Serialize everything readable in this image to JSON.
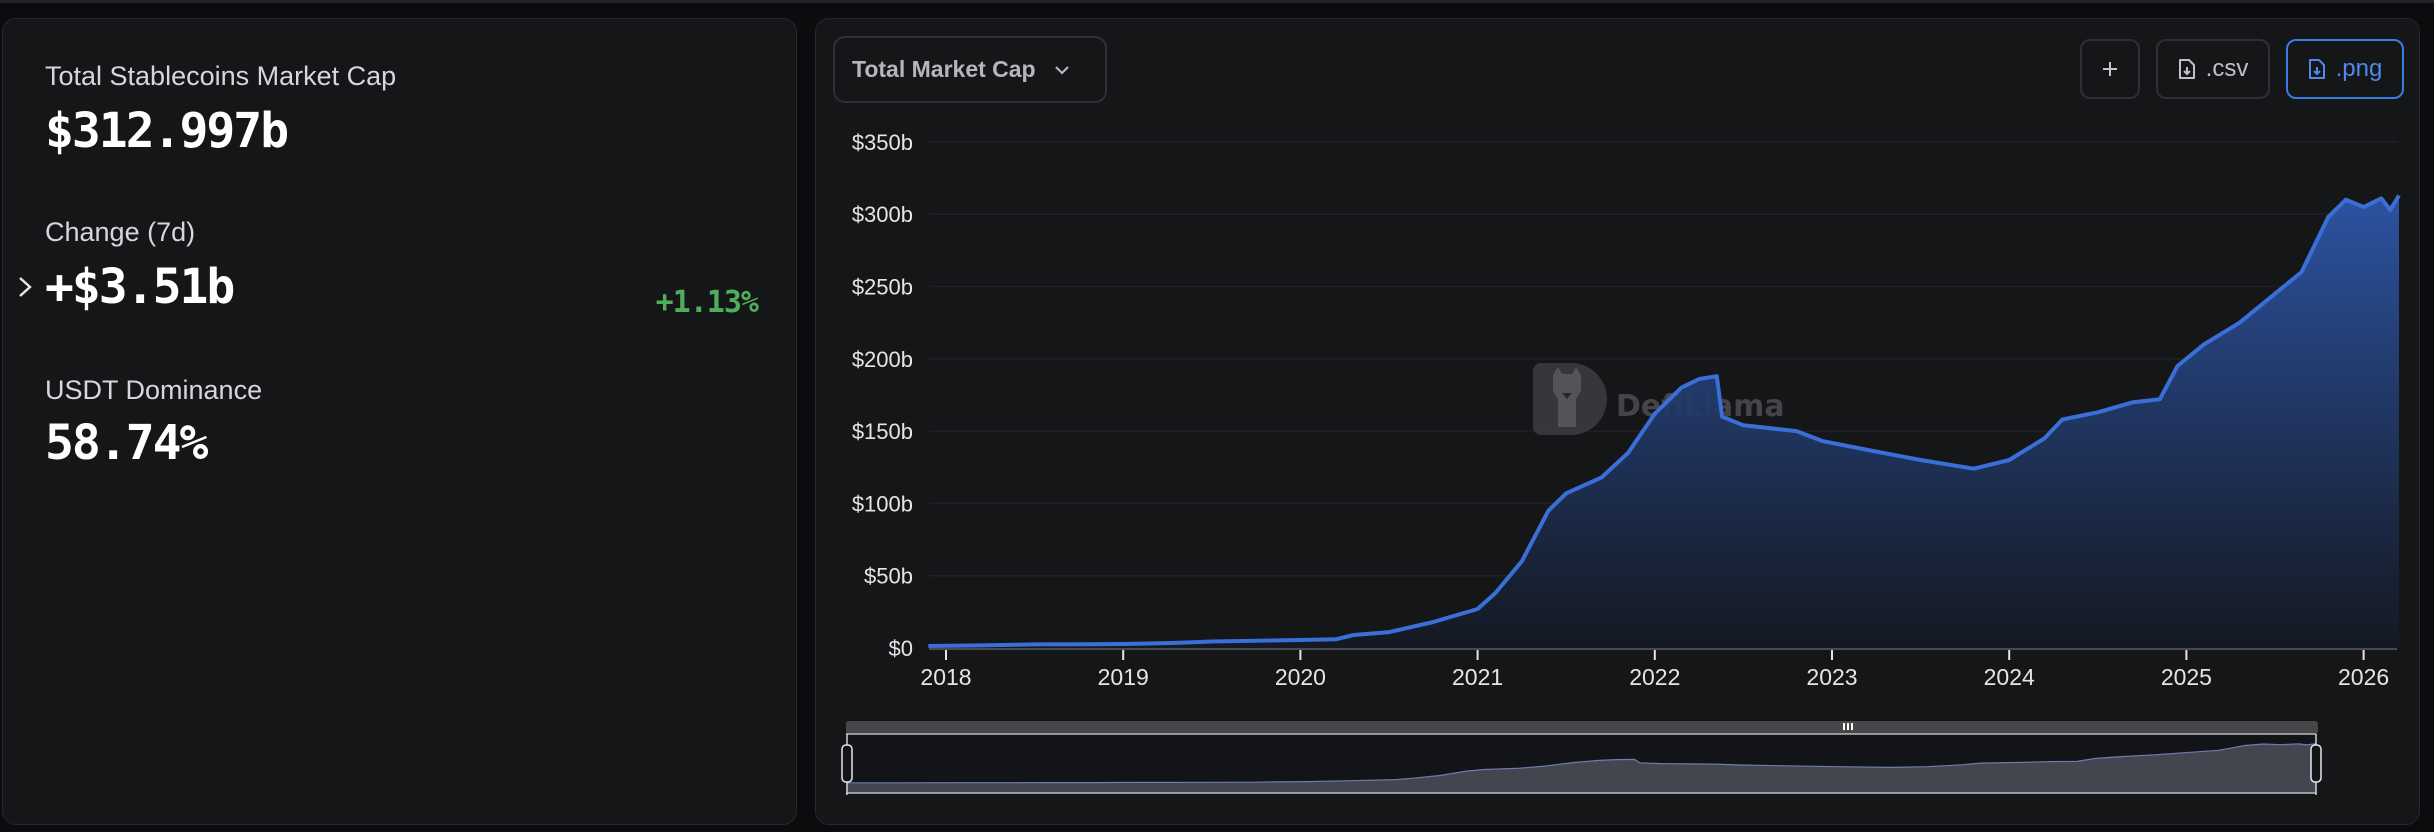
{
  "stats": {
    "market_cap": {
      "label": "Total Stablecoins Market Cap",
      "value": "$312.997b"
    },
    "change_7d": {
      "label": "Change (7d)",
      "value": "+$3.51b",
      "percent": "+1.13%",
      "percent_color": "#4fae5b"
    },
    "dominance": {
      "label": "USDT Dominance",
      "value": "58.74%"
    },
    "expand_icon": "chevron-right-icon"
  },
  "toolbar": {
    "dropdown_label": "Total Market Cap",
    "dropdown_icon": "chevron-down-icon",
    "add_label": "+",
    "csv_label": ".csv",
    "png_label": ".png",
    "download_icon": "file-download-icon",
    "active_color": "#3c7ae6"
  },
  "watermark": {
    "text": "DefiLlama",
    "icon": "llama-logo-icon"
  },
  "chart_data": {
    "type": "area",
    "title": "Total Market Cap",
    "xlabel": "",
    "ylabel": "",
    "ylim": [
      0,
      350
    ],
    "yticks": [
      "$0",
      "$50b",
      "$100b",
      "$150b",
      "$200b",
      "$250b",
      "$300b",
      "$350b"
    ],
    "ytick_values": [
      0,
      50,
      100,
      150,
      200,
      250,
      300,
      350
    ],
    "xticks": [
      "2018",
      "2019",
      "2020",
      "2021",
      "2022",
      "2023",
      "2024",
      "2025",
      "2026"
    ],
    "xtick_values": [
      2018,
      2019,
      2020,
      2021,
      2022,
      2023,
      2024,
      2025,
      2026
    ],
    "grid": true,
    "legend": "none",
    "line_color": "#3a6fd8",
    "series": [
      {
        "name": "Total Stablecoins Market Cap ($b)",
        "x": [
          2017.9,
          2018.2,
          2018.5,
          2018.8,
          2019.0,
          2019.3,
          2019.5,
          2019.75,
          2020.0,
          2020.2,
          2020.3,
          2020.5,
          2020.75,
          2021.0,
          2021.1,
          2021.25,
          2021.4,
          2021.5,
          2021.7,
          2021.85,
          2022.0,
          2022.15,
          2022.25,
          2022.35,
          2022.38,
          2022.5,
          2022.8,
          2022.95,
          2023.2,
          2023.5,
          2023.8,
          2024.0,
          2024.2,
          2024.3,
          2024.5,
          2024.7,
          2024.85,
          2024.95,
          2025.1,
          2025.3,
          2025.5,
          2025.65,
          2025.8,
          2025.9,
          2026.0,
          2026.1,
          2026.15,
          2026.2
        ],
        "values": [
          1.4,
          1.8,
          2.5,
          2.6,
          2.8,
          3.5,
          4.5,
          5.0,
          5.5,
          6.0,
          9.0,
          11.0,
          18.0,
          27.0,
          38.0,
          60.0,
          95.0,
          107.0,
          118.0,
          135.0,
          162.0,
          180.0,
          186.0,
          188.0,
          160.0,
          154.0,
          150.0,
          143.0,
          137.0,
          130.0,
          124.0,
          130.0,
          145.0,
          158.0,
          163.0,
          170.0,
          172.0,
          195.0,
          210.0,
          225.0,
          245.0,
          260.0,
          298.0,
          310.0,
          305.0,
          311.0,
          303.0,
          313.0
        ]
      }
    ],
    "annotations": [
      "DefiLlama watermark"
    ]
  },
  "brush": {
    "handle_left_icon": "brush-handle",
    "handle_right_icon": "brush-handle",
    "grip_icon": "grip-icon"
  }
}
